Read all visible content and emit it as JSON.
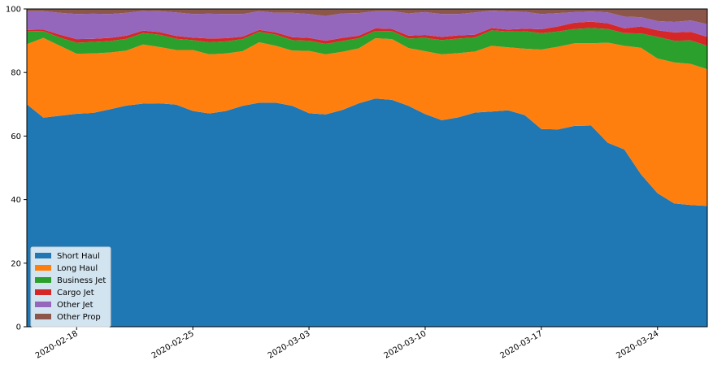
{
  "chart_data": {
    "type": "area",
    "stacked": true,
    "x": [
      "2020-02-15",
      "2020-02-16",
      "2020-02-17",
      "2020-02-18",
      "2020-02-19",
      "2020-02-20",
      "2020-02-21",
      "2020-02-22",
      "2020-02-23",
      "2020-02-24",
      "2020-02-25",
      "2020-02-26",
      "2020-02-27",
      "2020-02-28",
      "2020-02-29",
      "2020-03-01",
      "2020-03-02",
      "2020-03-03",
      "2020-03-04",
      "2020-03-05",
      "2020-03-06",
      "2020-03-07",
      "2020-03-08",
      "2020-03-09",
      "2020-03-10",
      "2020-03-11",
      "2020-03-12",
      "2020-03-13",
      "2020-03-14",
      "2020-03-15",
      "2020-03-16",
      "2020-03-17",
      "2020-03-18",
      "2020-03-19",
      "2020-03-20",
      "2020-03-21",
      "2020-03-22",
      "2020-03-23",
      "2020-03-24",
      "2020-03-25",
      "2020-03-26",
      "2020-03-27"
    ],
    "x_ticks": [
      "2020-02-18",
      "2020-02-25",
      "2020-03-03",
      "2020-03-10",
      "2020-03-17",
      "2020-03-24"
    ],
    "ylim": [
      0,
      100
    ],
    "y_ticks": [
      0,
      20,
      40,
      60,
      80,
      100
    ],
    "xlabel": "",
    "ylabel": "",
    "title": "",
    "grid": false,
    "legend_position": "lower-left",
    "series": [
      {
        "name": "Short Haul",
        "color": "#1f77b4",
        "values": [
          70,
          65.8,
          66.4,
          67,
          67.3,
          68.4,
          69.6,
          70.2,
          70.3,
          69.9,
          67.9,
          67.1,
          67.9,
          69.5,
          70.5,
          70.5,
          69.5,
          67.2,
          66.8,
          68.2,
          70.3,
          71.8,
          71.4,
          69.5,
          66.9,
          65,
          65.9,
          67.4,
          67.7,
          68.1,
          66.6,
          62.2,
          62.1,
          63.2,
          63.3,
          57.9,
          55.8,
          48,
          42,
          38.8,
          38.3,
          38
        ]
      },
      {
        "name": "Long Haul",
        "color": "#ff7f0e",
        "values": [
          18.9,
          25.1,
          22,
          18.9,
          18.7,
          17.9,
          17.3,
          18.6,
          17.7,
          17.2,
          19.2,
          18.6,
          18.1,
          17.2,
          19,
          17.9,
          17.4,
          19.6,
          18.9,
          18.3,
          17.3,
          19,
          19.1,
          18.2,
          19.8,
          20.7,
          20.2,
          19.2,
          20.7,
          19.8,
          20.9,
          25,
          26,
          26,
          25.9,
          31.5,
          32.6,
          39.8,
          42.4,
          44.4,
          44.4,
          43
        ]
      },
      {
        "name": "Business Jet",
        "color": "#2ca02c",
        "values": [
          4.2,
          2.1,
          2.6,
          3.5,
          3.6,
          3.6,
          3.7,
          3.6,
          3.9,
          3.5,
          3.1,
          3.8,
          3.8,
          3.8,
          3.3,
          3.5,
          3.3,
          3.2,
          3.3,
          3.4,
          3.2,
          2.3,
          2.5,
          3,
          4.2,
          4.5,
          4.6,
          4.4,
          4.9,
          5,
          5.5,
          5.2,
          4.8,
          4.5,
          4.8,
          4.3,
          4,
          4.5,
          6.8,
          6.8,
          7.4,
          7.4
        ]
      },
      {
        "name": "Cargo Jet",
        "color": "#d62728",
        "values": [
          0.3,
          0.5,
          0.9,
          1.1,
          1,
          1,
          1,
          0.8,
          0.8,
          0.9,
          0.8,
          1.2,
          1,
          0.8,
          0.6,
          0.7,
          0.9,
          0.9,
          1,
          1,
          0.8,
          0.8,
          0.7,
          0.9,
          0.9,
          1,
          1,
          0.9,
          0.7,
          0.6,
          0.8,
          1.2,
          1.6,
          2,
          2,
          1.8,
          1.5,
          2.2,
          2.1,
          2.6,
          2.7,
          2.8
        ]
      },
      {
        "name": "Other Jet",
        "color": "#9467bd",
        "values": [
          5.9,
          5.8,
          6.9,
          7.9,
          7.9,
          7.5,
          7.2,
          6.2,
          6.6,
          7.4,
          7.4,
          7.8,
          7.6,
          7.1,
          5.9,
          6.2,
          7.7,
          7.5,
          7.8,
          7.7,
          7.1,
          5.4,
          5.6,
          7,
          7.2,
          7.2,
          6.7,
          7,
          5.5,
          5.7,
          5.3,
          4.8,
          4.2,
          3.3,
          3.2,
          3.4,
          3.7,
          2.9,
          2.9,
          3.3,
          3.6,
          4
        ]
      },
      {
        "name": "Other Prop",
        "color": "#8c564b",
        "values": [
          0.7,
          0.7,
          1.2,
          1.6,
          1.5,
          1.6,
          1.2,
          0.6,
          0.7,
          1.1,
          1.6,
          1.5,
          1.6,
          1.6,
          0.7,
          1.2,
          1.2,
          1.6,
          2.2,
          1.4,
          1.3,
          0.7,
          0.7,
          1.4,
          1,
          1.6,
          1.6,
          1.1,
          0.5,
          0.8,
          0.9,
          1.6,
          1.3,
          1,
          0.8,
          1.1,
          2.4,
          2.6,
          3.8,
          4.1,
          3.6,
          4.8
        ]
      }
    ]
  }
}
